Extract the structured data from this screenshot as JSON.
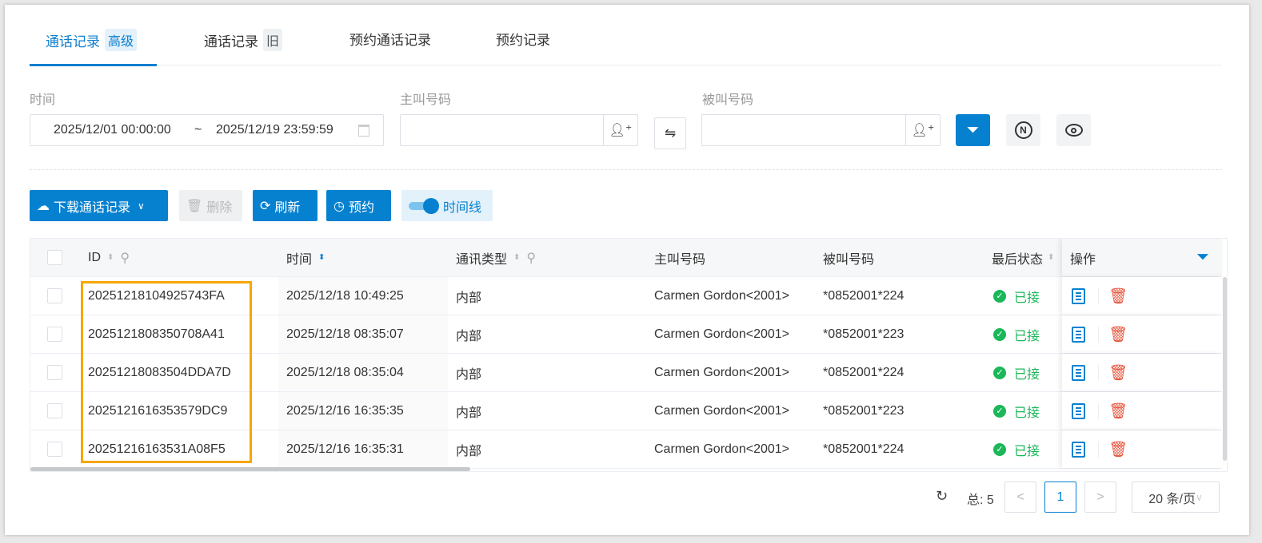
{
  "tabs": [
    {
      "label": "通话记录",
      "tag": "高级",
      "active": true
    },
    {
      "label": "通话记录",
      "tag": "旧"
    },
    {
      "label": "预约通话记录"
    },
    {
      "label": "预约记录"
    }
  ],
  "filters": {
    "time_label": "时间",
    "time_start": "2025/12/01 00:00:00",
    "time_sep": "~",
    "time_end": "2025/12/19 23:59:59",
    "caller_label": "主叫号码",
    "caller_value": "",
    "callee_label": "被叫号码",
    "callee_value": ""
  },
  "toolbar": {
    "download": "下载通话记录",
    "delete": "删除",
    "refresh": "刷新",
    "schedule": "预约",
    "timeline": "时间线",
    "timeline_on": true
  },
  "table": {
    "columns": [
      "ID",
      "时间",
      "通讯类型",
      "主叫号码",
      "被叫号码",
      "最后状态",
      "操作"
    ],
    "rows": [
      {
        "id": "20251218104925743FA",
        "time": "2025/12/18 10:49:25",
        "type": "内部",
        "caller": "Carmen Gordon<2001>",
        "callee": "*0852001*224",
        "status": "已接"
      },
      {
        "id": "2025121808350708A41",
        "time": "2025/12/18 08:35:07",
        "type": "内部",
        "caller": "Carmen Gordon<2001>",
        "callee": "*0852001*223",
        "status": "已接"
      },
      {
        "id": "20251218083504DDA7D",
        "time": "2025/12/18 08:35:04",
        "type": "内部",
        "caller": "Carmen Gordon<2001>",
        "callee": "*0852001*224",
        "status": "已接"
      },
      {
        "id": "202512161635357 9DC9",
        "time": "2025/12/16 16:35:35",
        "type": "内部",
        "caller": "Carmen Gordon<2001>",
        "callee": "*0852001*223",
        "status": "已接"
      },
      {
        "id": "20251216163531A08F5",
        "time": "2025/12/16 16:35:31",
        "type": "内部",
        "caller": "Carmen Gordon<2001>",
        "callee": "*0852001*224",
        "status": "已接"
      }
    ]
  },
  "pagination": {
    "total": "总: 5",
    "prev": "<",
    "page": "1",
    "next": ">",
    "page_size": "20 条/页"
  },
  "colors": {
    "primary": "#0681d0",
    "success": "#1bb759",
    "danger": "#e8533b",
    "highlight": "#f7a600"
  }
}
